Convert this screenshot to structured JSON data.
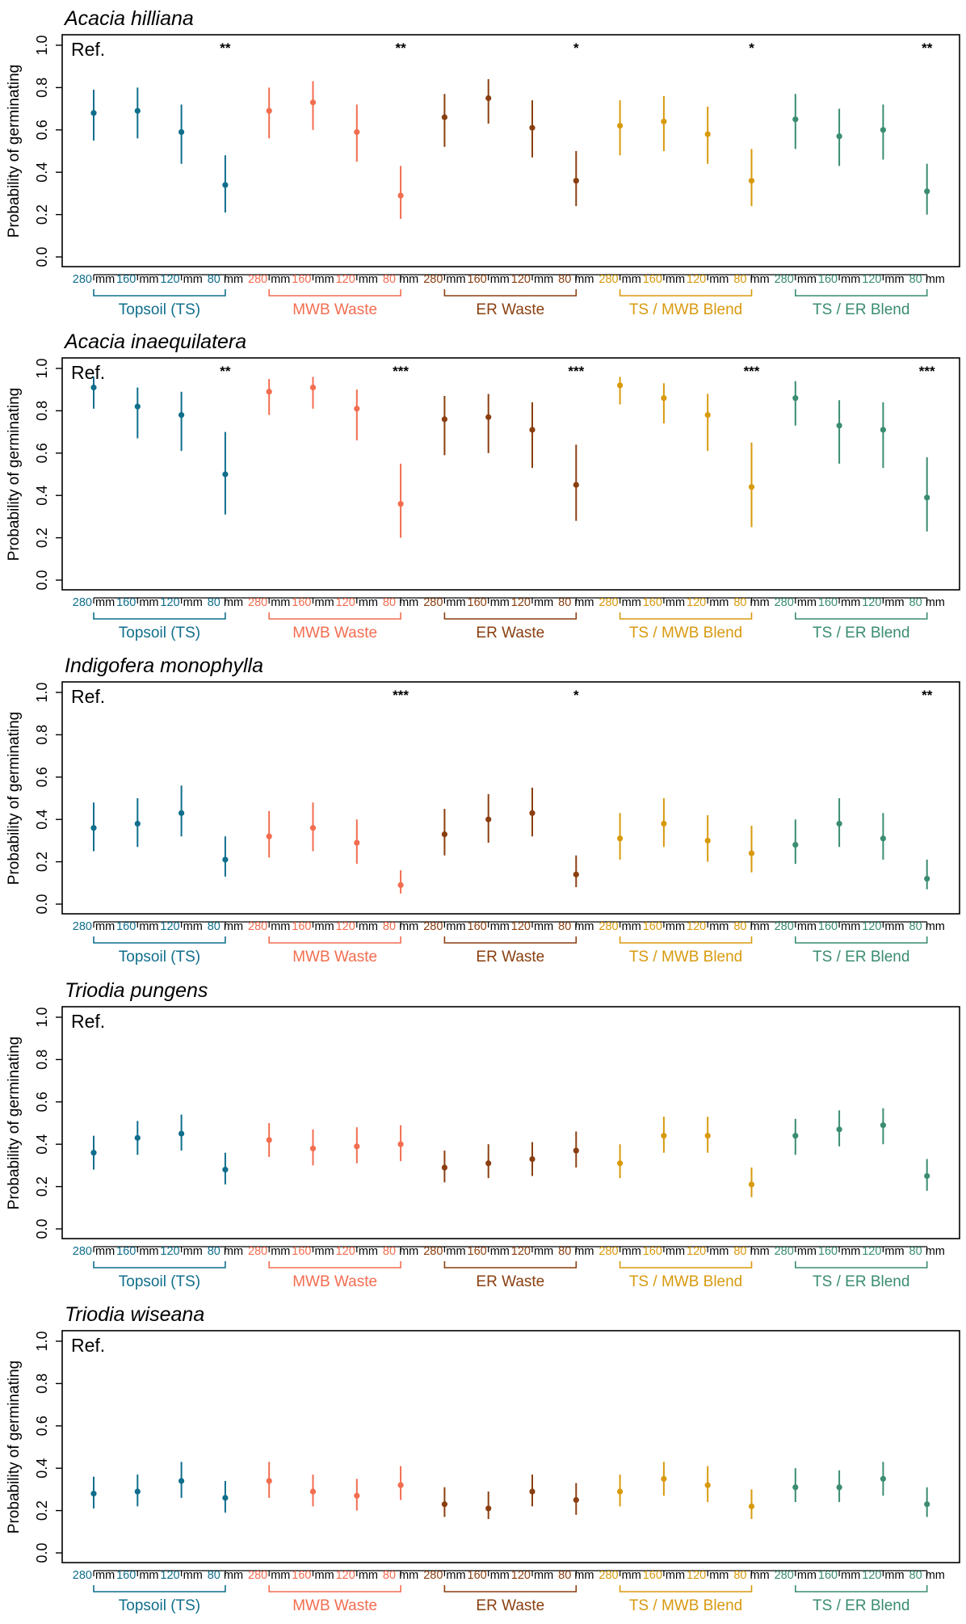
{
  "y_axis_label": "Probability of germinating",
  "ref_label": "Ref.",
  "groups": [
    {
      "name": "Topsoil (TS)",
      "color": "#0F6E8C"
    },
    {
      "name": "MWB Waste",
      "color": "#F26D50"
    },
    {
      "name": "ER Waste",
      "color": "#8A3F10"
    },
    {
      "name": "TS / MWB Blend",
      "color": "#D89A0E"
    },
    {
      "name": "TS / ER Blend",
      "color": "#3A8C72"
    }
  ],
  "depth_labels": [
    "280 mm",
    "160 mm",
    "120 mm",
    "80 mm"
  ],
  "y_ticks": [
    "0.0",
    "0.2",
    "0.4",
    "0.6",
    "0.8",
    "1.0"
  ],
  "chart_data": [
    {
      "type": "scatter",
      "title": "Acacia hilliana",
      "ylim": [
        0,
        1
      ],
      "significance": [
        "**",
        "**",
        "*",
        "*",
        "**"
      ],
      "series": [
        {
          "name": "Topsoil (TS)",
          "estimates": [
            0.68,
            0.69,
            0.59,
            0.34
          ],
          "lower": [
            0.55,
            0.56,
            0.44,
            0.21
          ],
          "upper": [
            0.79,
            0.8,
            0.72,
            0.48
          ]
        },
        {
          "name": "MWB Waste",
          "estimates": [
            0.69,
            0.73,
            0.59,
            0.29
          ],
          "lower": [
            0.56,
            0.6,
            0.45,
            0.18
          ],
          "upper": [
            0.8,
            0.83,
            0.72,
            0.43
          ]
        },
        {
          "name": "ER Waste",
          "estimates": [
            0.66,
            0.75,
            0.61,
            0.36
          ],
          "lower": [
            0.52,
            0.63,
            0.47,
            0.24
          ],
          "upper": [
            0.77,
            0.84,
            0.74,
            0.5
          ]
        },
        {
          "name": "TS / MWB Blend",
          "estimates": [
            0.62,
            0.64,
            0.58,
            0.36
          ],
          "lower": [
            0.48,
            0.5,
            0.44,
            0.24
          ],
          "upper": [
            0.74,
            0.76,
            0.71,
            0.51
          ]
        },
        {
          "name": "TS / ER Blend",
          "estimates": [
            0.65,
            0.57,
            0.6,
            0.31
          ],
          "lower": [
            0.51,
            0.43,
            0.46,
            0.2
          ],
          "upper": [
            0.77,
            0.7,
            0.72,
            0.44
          ]
        }
      ]
    },
    {
      "type": "scatter",
      "title": "Acacia inaequilatera",
      "ylim": [
        0,
        1
      ],
      "significance": [
        "**",
        "***",
        "***",
        "***",
        "***"
      ],
      "series": [
        {
          "name": "Topsoil (TS)",
          "estimates": [
            0.91,
            0.82,
            0.78,
            0.5
          ],
          "lower": [
            0.81,
            0.67,
            0.61,
            0.31
          ],
          "upper": [
            0.96,
            0.91,
            0.89,
            0.7
          ]
        },
        {
          "name": "MWB Waste",
          "estimates": [
            0.89,
            0.91,
            0.81,
            0.36
          ],
          "lower": [
            0.78,
            0.81,
            0.66,
            0.2
          ],
          "upper": [
            0.95,
            0.96,
            0.9,
            0.55
          ]
        },
        {
          "name": "ER Waste",
          "estimates": [
            0.76,
            0.77,
            0.71,
            0.45
          ],
          "lower": [
            0.59,
            0.6,
            0.53,
            0.28
          ],
          "upper": [
            0.87,
            0.88,
            0.84,
            0.64
          ]
        },
        {
          "name": "TS / MWB Blend",
          "estimates": [
            0.92,
            0.86,
            0.78,
            0.44
          ],
          "lower": [
            0.83,
            0.74,
            0.61,
            0.25
          ],
          "upper": [
            0.96,
            0.93,
            0.88,
            0.65
          ]
        },
        {
          "name": "TS / ER Blend",
          "estimates": [
            0.86,
            0.73,
            0.71,
            0.39
          ],
          "lower": [
            0.73,
            0.55,
            0.53,
            0.23
          ],
          "upper": [
            0.94,
            0.85,
            0.84,
            0.58
          ]
        }
      ]
    },
    {
      "type": "scatter",
      "title": "Indigofera monophylla",
      "ylim": [
        0,
        1
      ],
      "significance": [
        "",
        "***",
        "*",
        "",
        "**"
      ],
      "series": [
        {
          "name": "Topsoil (TS)",
          "estimates": [
            0.36,
            0.38,
            0.43,
            0.21
          ],
          "lower": [
            0.25,
            0.27,
            0.32,
            0.13
          ],
          "upper": [
            0.48,
            0.5,
            0.56,
            0.32
          ]
        },
        {
          "name": "MWB Waste",
          "estimates": [
            0.32,
            0.36,
            0.29,
            0.09
          ],
          "lower": [
            0.22,
            0.25,
            0.19,
            0.05
          ],
          "upper": [
            0.44,
            0.48,
            0.4,
            0.16
          ]
        },
        {
          "name": "ER Waste",
          "estimates": [
            0.33,
            0.4,
            0.43,
            0.14
          ],
          "lower": [
            0.23,
            0.29,
            0.32,
            0.08
          ],
          "upper": [
            0.45,
            0.52,
            0.55,
            0.23
          ]
        },
        {
          "name": "TS / MWB Blend",
          "estimates": [
            0.31,
            0.38,
            0.3,
            0.24
          ],
          "lower": [
            0.21,
            0.27,
            0.2,
            0.15
          ],
          "upper": [
            0.43,
            0.5,
            0.42,
            0.37
          ]
        },
        {
          "name": "TS / ER Blend",
          "estimates": [
            0.28,
            0.38,
            0.31,
            0.12
          ],
          "lower": [
            0.19,
            0.27,
            0.21,
            0.07
          ],
          "upper": [
            0.4,
            0.5,
            0.43,
            0.21
          ]
        }
      ]
    },
    {
      "type": "scatter",
      "title": "Triodia pungens",
      "ylim": [
        0,
        1
      ],
      "significance": [
        "",
        "",
        "",
        "",
        ""
      ],
      "series": [
        {
          "name": "Topsoil (TS)",
          "estimates": [
            0.36,
            0.43,
            0.45,
            0.28
          ],
          "lower": [
            0.28,
            0.35,
            0.37,
            0.21
          ],
          "upper": [
            0.44,
            0.51,
            0.54,
            0.36
          ]
        },
        {
          "name": "MWB Waste",
          "estimates": [
            0.42,
            0.38,
            0.39,
            0.4
          ],
          "lower": [
            0.34,
            0.3,
            0.31,
            0.32
          ],
          "upper": [
            0.5,
            0.47,
            0.48,
            0.49
          ]
        },
        {
          "name": "ER Waste",
          "estimates": [
            0.29,
            0.31,
            0.33,
            0.37
          ],
          "lower": [
            0.22,
            0.24,
            0.25,
            0.29
          ],
          "upper": [
            0.37,
            0.4,
            0.41,
            0.46
          ]
        },
        {
          "name": "TS / MWB Blend",
          "estimates": [
            0.31,
            0.44,
            0.44,
            0.21
          ],
          "lower": [
            0.24,
            0.36,
            0.36,
            0.15
          ],
          "upper": [
            0.4,
            0.53,
            0.53,
            0.29
          ]
        },
        {
          "name": "TS / ER Blend",
          "estimates": [
            0.44,
            0.47,
            0.49,
            0.25
          ],
          "lower": [
            0.35,
            0.39,
            0.4,
            0.18
          ],
          "upper": [
            0.52,
            0.56,
            0.57,
            0.33
          ]
        }
      ]
    },
    {
      "type": "scatter",
      "title": "Triodia wiseana",
      "ylim": [
        0,
        1
      ],
      "significance": [
        "",
        "",
        "",
        "",
        ""
      ],
      "series": [
        {
          "name": "Topsoil (TS)",
          "estimates": [
            0.28,
            0.29,
            0.34,
            0.26
          ],
          "lower": [
            0.21,
            0.22,
            0.26,
            0.19
          ],
          "upper": [
            0.36,
            0.37,
            0.43,
            0.34
          ]
        },
        {
          "name": "MWB Waste",
          "estimates": [
            0.34,
            0.29,
            0.27,
            0.32
          ],
          "lower": [
            0.26,
            0.22,
            0.2,
            0.25
          ],
          "upper": [
            0.43,
            0.37,
            0.35,
            0.41
          ]
        },
        {
          "name": "ER Waste",
          "estimates": [
            0.23,
            0.21,
            0.29,
            0.25
          ],
          "lower": [
            0.17,
            0.16,
            0.22,
            0.18
          ],
          "upper": [
            0.31,
            0.29,
            0.37,
            0.33
          ]
        },
        {
          "name": "TS / MWB Blend",
          "estimates": [
            0.29,
            0.35,
            0.32,
            0.22
          ],
          "lower": [
            0.22,
            0.27,
            0.24,
            0.16
          ],
          "upper": [
            0.37,
            0.43,
            0.41,
            0.3
          ]
        },
        {
          "name": "TS / ER Blend",
          "estimates": [
            0.31,
            0.31,
            0.35,
            0.23
          ],
          "lower": [
            0.24,
            0.24,
            0.27,
            0.17
          ],
          "upper": [
            0.4,
            0.39,
            0.43,
            0.31
          ]
        }
      ]
    }
  ]
}
